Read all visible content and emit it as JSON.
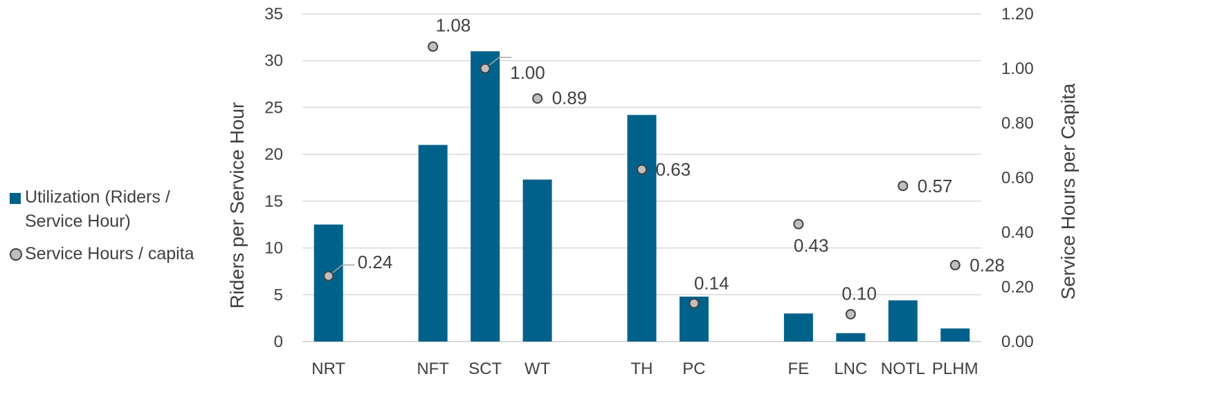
{
  "chart_data": {
    "type": "bar",
    "title": "",
    "categories": [
      "NRT",
      "",
      "NFT",
      "SCT",
      "WT",
      "",
      "TH",
      "PC",
      "",
      "FE",
      "LNC",
      "NOTL",
      "PLHM"
    ],
    "series": [
      {
        "name": "Utilization (Riders / Service Hour)",
        "type": "bar",
        "axis": "left",
        "color": "#00628b",
        "values": [
          12.5,
          null,
          21.0,
          31.0,
          17.3,
          null,
          24.2,
          4.8,
          null,
          3.0,
          0.9,
          4.4,
          1.4
        ]
      },
      {
        "name": "Service Hours / capita",
        "type": "scatter",
        "axis": "right",
        "color": "#bfbfbf",
        "values": [
          0.24,
          null,
          1.08,
          1.0,
          0.89,
          null,
          0.63,
          0.14,
          null,
          0.43,
          0.1,
          0.57,
          0.28
        ],
        "labels": [
          "0.24",
          null,
          "1.08",
          "1.00",
          "0.89",
          null,
          "0.63",
          "0.14",
          null,
          "0.43",
          "0.10",
          "0.57",
          "0.28"
        ]
      }
    ],
    "ylabel": "Riders per Service Hour",
    "y2label": "Service Hours per Capita",
    "ylim": [
      0,
      35
    ],
    "yticks": [
      "0",
      "5",
      "10",
      "15",
      "20",
      "25",
      "30",
      "35"
    ],
    "y2lim": [
      0,
      1.2
    ],
    "y2ticks": [
      "0.00",
      "0.20",
      "0.40",
      "0.60",
      "0.80",
      "1.00",
      "1.20"
    ],
    "grid": true,
    "legend_position": "left"
  },
  "legend": {
    "bar_label_line1": "Utilization (Riders /",
    "bar_label_line2": "Service Hour)",
    "dot_label": "Service Hours / capita"
  }
}
